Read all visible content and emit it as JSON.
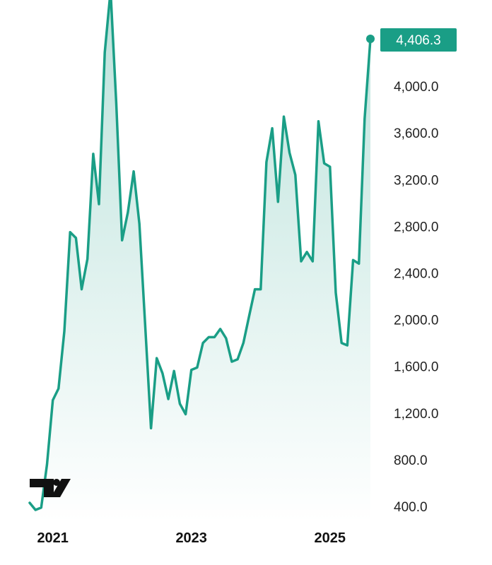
{
  "chart_data": {
    "type": "area",
    "title": "",
    "xlabel": "",
    "ylabel": "",
    "x_ticks": [
      "2021",
      "2023",
      "2025"
    ],
    "y_ticks": [
      "400.0",
      "800.0",
      "1,200.0",
      "1,600.0",
      "2,000.0",
      "2,400.0",
      "2,800.0",
      "3,200.0",
      "3,600.0",
      "4,000.0"
    ],
    "ylim": [
      400,
      4400
    ],
    "xlim": [
      "2020-09",
      "2025-08"
    ],
    "grid": false,
    "legend": "none",
    "line_color": "#1a9e86",
    "last_value": {
      "label": "4,406.3",
      "value": 4406.3
    },
    "series": [
      {
        "x": [
          "2020-09",
          "2020-10",
          "2020-11",
          "2020-12",
          "2021-01",
          "2021-02",
          "2021-03",
          "2021-04",
          "2021-05",
          "2021-06",
          "2021-07",
          "2021-08",
          "2021-09",
          "2021-10",
          "2021-11",
          "2021-12",
          "2022-01",
          "2022-02",
          "2022-03",
          "2022-04",
          "2022-05",
          "2022-06",
          "2022-07",
          "2022-08",
          "2022-09",
          "2022-10",
          "2022-11",
          "2022-12",
          "2023-01",
          "2023-02",
          "2023-03",
          "2023-04",
          "2023-05",
          "2023-06",
          "2023-07",
          "2023-08",
          "2023-09",
          "2023-10",
          "2023-11",
          "2023-12",
          "2024-01",
          "2024-02",
          "2024-03",
          "2024-04",
          "2024-05",
          "2024-06",
          "2024-07",
          "2024-08",
          "2024-09",
          "2024-10",
          "2024-11",
          "2024-12",
          "2025-01",
          "2025-02",
          "2025-03",
          "2025-04",
          "2025-05",
          "2025-06",
          "2025-07",
          "2025-08"
        ],
        "values": [
          430,
          370,
          390,
          760,
          1310,
          1410,
          1900,
          2750,
          2700,
          2260,
          2520,
          3420,
          2990,
          4290,
          4820,
          3850,
          2680,
          2920,
          3270,
          2820,
          1950,
          1070,
          1670,
          1540,
          1320,
          1560,
          1280,
          1190,
          1570,
          1590,
          1800,
          1850,
          1850,
          1920,
          1840,
          1640,
          1660,
          1800,
          2030,
          2260,
          2260,
          3350,
          3640,
          3010,
          3740,
          3430,
          3240,
          2500,
          2580,
          2500,
          3700,
          3340,
          3310,
          2230,
          1800,
          1780,
          2510,
          2480,
          3720,
          4406.3
        ]
      }
    ]
  }
}
